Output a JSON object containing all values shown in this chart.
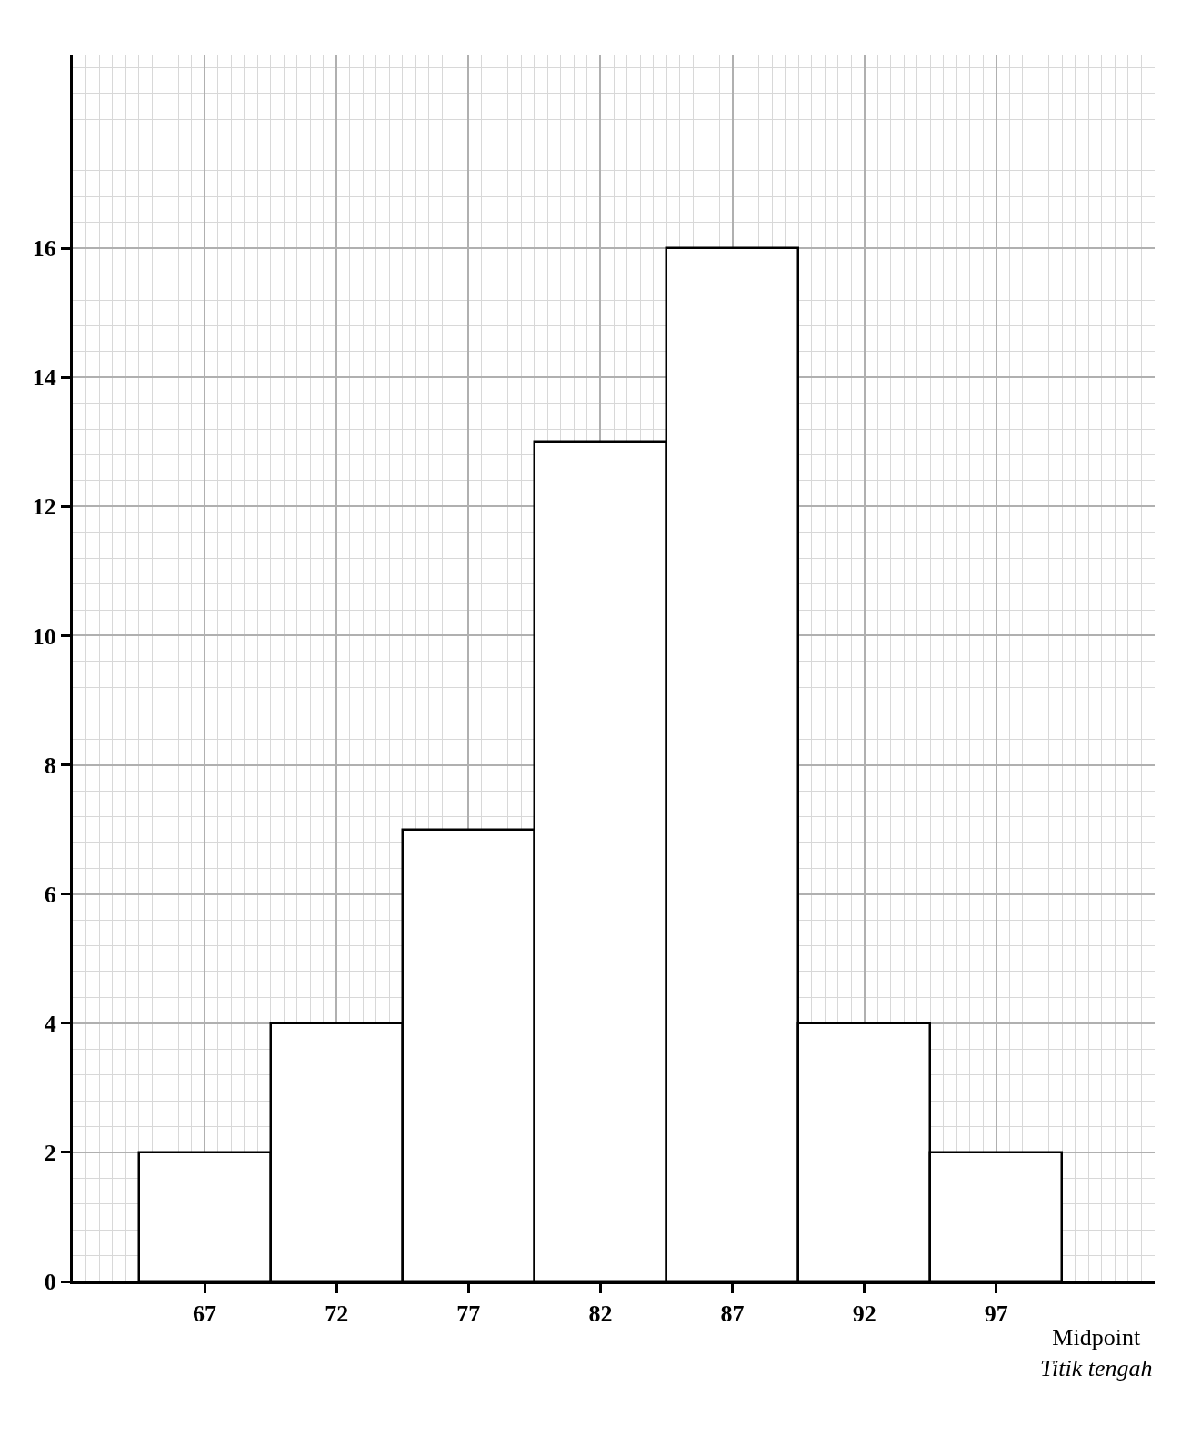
{
  "chart_data": {
    "type": "histogram",
    "xlabel": "Midpoint\nTitik tengah",
    "bins": [
      64.5,
      69.5,
      74.5,
      79.5,
      84.5,
      89.5,
      94.5,
      99.5
    ],
    "values": [
      2,
      4,
      7,
      13,
      16,
      4,
      2
    ],
    "color": "#ffffff",
    "xlim": [
      62,
      103
    ],
    "ylim": [
      0,
      19
    ],
    "xticks": [
      67,
      72,
      77,
      82,
      87,
      92,
      97
    ],
    "yticks": [
      0,
      2,
      4,
      6,
      8,
      10,
      12,
      14,
      16
    ],
    "grid": true,
    "legend": false
  }
}
